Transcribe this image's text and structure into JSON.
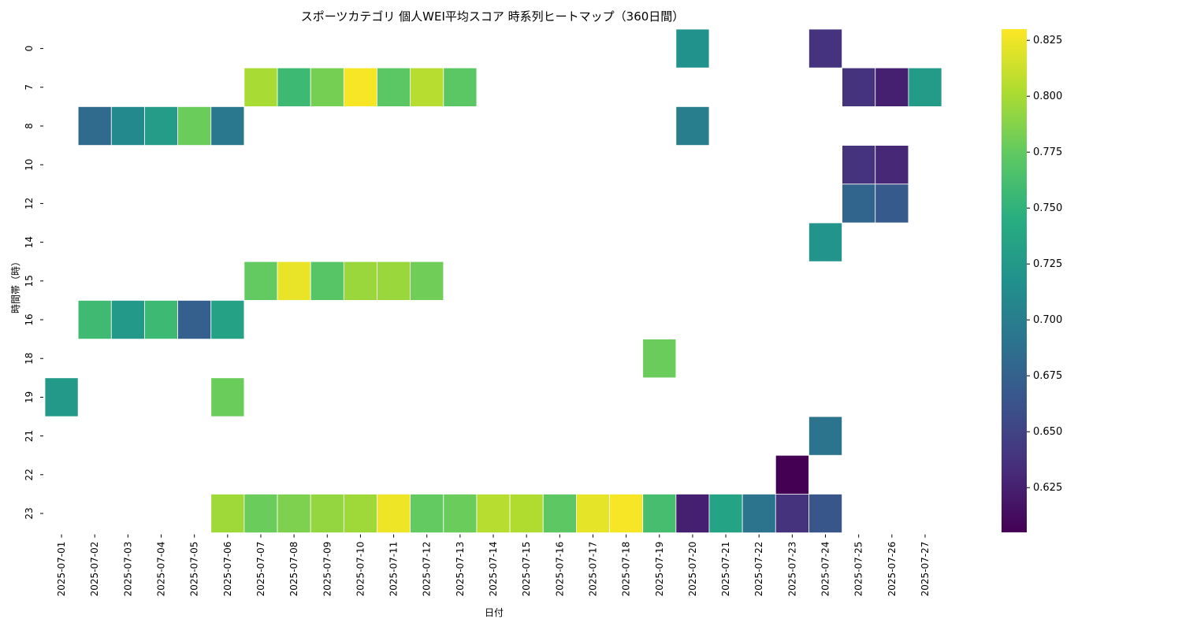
{
  "chart_data": {
    "type": "heatmap",
    "title": "スポーツカテゴリ 個人WEI平均スコア 時系列ヒートマップ（360日間）",
    "xlabel": "日付",
    "ylabel": "時間帯（時）",
    "x_categories": [
      "2025-07-01",
      "2025-07-02",
      "2025-07-03",
      "2025-07-04",
      "2025-07-05",
      "2025-07-06",
      "2025-07-07",
      "2025-07-08",
      "2025-07-09",
      "2025-07-10",
      "2025-07-11",
      "2025-07-12",
      "2025-07-13",
      "2025-07-14",
      "2025-07-15",
      "2025-07-16",
      "2025-07-17",
      "2025-07-18",
      "2025-07-19",
      "2025-07-20",
      "2025-07-21",
      "2025-07-22",
      "2025-07-23",
      "2025-07-24",
      "2025-07-25",
      "2025-07-26",
      "2025-07-27"
    ],
    "y_categories": [
      "0",
      "7",
      "8",
      "10",
      "12",
      "14",
      "15",
      "16",
      "18",
      "19",
      "21",
      "22",
      "23"
    ],
    "colorscale": "viridis",
    "vmin": 0.605,
    "vmax": 0.83,
    "colorbar_ticks": [
      "0.625",
      "0.650",
      "0.675",
      "0.700",
      "0.725",
      "0.750",
      "0.775",
      "0.800",
      "0.825"
    ],
    "values": [
      [
        null,
        null,
        null,
        null,
        null,
        null,
        null,
        null,
        null,
        null,
        null,
        null,
        null,
        null,
        null,
        null,
        null,
        null,
        null,
        0.718,
        null,
        null,
        null,
        0.638,
        null,
        null,
        null
      ],
      [
        null,
        null,
        null,
        null,
        null,
        null,
        0.8,
        0.757,
        0.782,
        0.828,
        0.772,
        0.805,
        0.772,
        null,
        null,
        null,
        null,
        null,
        null,
        null,
        null,
        null,
        null,
        null,
        0.638,
        0.625,
        0.727
      ],
      [
        null,
        0.682,
        0.71,
        0.728,
        0.778,
        0.695,
        null,
        null,
        null,
        null,
        null,
        null,
        null,
        null,
        null,
        null,
        null,
        null,
        null,
        0.7,
        null,
        null,
        null,
        null,
        null,
        null,
        null
      ],
      [
        null,
        null,
        null,
        null,
        null,
        null,
        null,
        null,
        null,
        null,
        null,
        null,
        null,
        null,
        null,
        null,
        null,
        null,
        null,
        null,
        null,
        null,
        null,
        null,
        0.638,
        0.63,
        null
      ],
      [
        null,
        null,
        null,
        null,
        null,
        null,
        null,
        null,
        null,
        null,
        null,
        null,
        null,
        null,
        null,
        null,
        null,
        null,
        null,
        null,
        null,
        null,
        null,
        null,
        0.678,
        0.668,
        null
      ],
      [
        null,
        null,
        null,
        null,
        null,
        null,
        null,
        null,
        null,
        null,
        null,
        null,
        null,
        null,
        null,
        null,
        null,
        null,
        null,
        null,
        null,
        null,
        null,
        0.72,
        null,
        null,
        null
      ],
      [
        null,
        null,
        null,
        null,
        null,
        null,
        0.775,
        0.823,
        0.77,
        0.795,
        0.795,
        0.78,
        null,
        null,
        null,
        null,
        null,
        null,
        null,
        null,
        null,
        null,
        null,
        null,
        null,
        null,
        null
      ],
      [
        null,
        0.758,
        0.725,
        0.757,
        0.673,
        0.733,
        null,
        null,
        null,
        null,
        null,
        null,
        null,
        null,
        null,
        null,
        null,
        null,
        null,
        null,
        null,
        null,
        null,
        null,
        null,
        null,
        null
      ],
      [
        null,
        null,
        null,
        null,
        null,
        null,
        null,
        null,
        null,
        null,
        null,
        null,
        null,
        null,
        null,
        null,
        null,
        null,
        0.778,
        null,
        null,
        null,
        null,
        null,
        null,
        null,
        null
      ],
      [
        0.725,
        null,
        null,
        null,
        null,
        0.778,
        null,
        null,
        null,
        null,
        null,
        null,
        null,
        null,
        null,
        null,
        null,
        null,
        null,
        null,
        null,
        null,
        null,
        null,
        null,
        null,
        null
      ],
      [
        null,
        null,
        null,
        null,
        null,
        null,
        null,
        null,
        null,
        null,
        null,
        null,
        null,
        null,
        null,
        null,
        null,
        null,
        null,
        null,
        null,
        null,
        null,
        0.69,
        null,
        null,
        null
      ],
      [
        null,
        null,
        null,
        null,
        null,
        null,
        null,
        null,
        null,
        null,
        null,
        null,
        null,
        null,
        null,
        null,
        null,
        null,
        null,
        null,
        null,
        null,
        0.605,
        null,
        null,
        null,
        null
      ],
      [
        null,
        null,
        null,
        null,
        null,
        0.797,
        0.778,
        0.785,
        0.793,
        0.797,
        0.825,
        0.775,
        0.778,
        0.805,
        0.803,
        0.773,
        0.822,
        0.828,
        0.762,
        0.625,
        0.735,
        0.69,
        0.638,
        0.665,
        null,
        null,
        null
      ]
    ]
  }
}
